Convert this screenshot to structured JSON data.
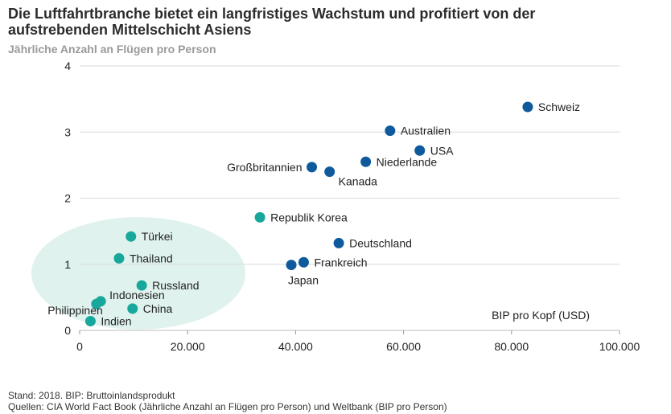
{
  "title_line1": "Die Luftfahrtbranche bietet ein langfristiges Wachstum und profitiert von der",
  "title_line2": "aufstrebenden Mittelschicht Asiens",
  "subtitle": "Jährliche Anzahl an Flügen pro Person",
  "footer_line1": "Stand: 2018. BIP: Bruttoinlandsprodukt",
  "footer_line2": "Quellen: CIA World Fact Book (Jährliche Anzahl an Flügen pro Person) und Weltbank (BIP pro Person)",
  "colors": {
    "developed": "#0f5a9c",
    "emerging": "#17a89b",
    "ellipse": "#dff2ee",
    "grid": "#d9d9d9"
  },
  "chart_data": {
    "type": "scatter",
    "title": "Die Luftfahrtbranche bietet ein langfristiges Wachstum und profitiert von der aufstrebenden Mittelschicht Asiens",
    "ylabel": "Jährliche Anzahl an Flügen pro Person",
    "xlabel": "BIP pro Kopf (USD)",
    "xlim": [
      0,
      100000
    ],
    "ylim": [
      0,
      4
    ],
    "x_ticks": [
      0,
      20000,
      40000,
      60000,
      80000,
      100000
    ],
    "x_tick_labels": [
      "0",
      "20.000",
      "40.000",
      "60.000",
      "80.000",
      "100.000"
    ],
    "y_ticks": [
      0,
      1,
      2,
      3,
      4
    ],
    "y_tick_labels": [
      "0",
      "1",
      "2",
      "3",
      "4"
    ],
    "grid": "horizontal",
    "series": [
      {
        "name": "developed",
        "points": [
          {
            "label": "Schweiz",
            "x": 83000,
            "y": 3.38,
            "label_pos": "right"
          },
          {
            "label": "Australien",
            "x": 57500,
            "y": 3.02,
            "label_pos": "right"
          },
          {
            "label": "USA",
            "x": 63000,
            "y": 2.72,
            "label_pos": "right"
          },
          {
            "label": "Niederlande",
            "x": 53000,
            "y": 2.55,
            "label_pos": "right"
          },
          {
            "label": "Großbritannien",
            "x": 43000,
            "y": 2.47,
            "label_pos": "left"
          },
          {
            "label": "Kanada",
            "x": 46300,
            "y": 2.4,
            "label_pos": "below-right"
          },
          {
            "label": "Deutschland",
            "x": 48000,
            "y": 1.32,
            "label_pos": "right"
          },
          {
            "label": "Frankreich",
            "x": 41500,
            "y": 1.03,
            "label_pos": "right"
          },
          {
            "label": "Japan",
            "x": 39200,
            "y": 0.99,
            "label_pos": "below"
          }
        ]
      },
      {
        "name": "emerging",
        "points": [
          {
            "label": "Republik Korea",
            "x": 33400,
            "y": 1.71,
            "label_pos": "right"
          },
          {
            "label": "Türkei",
            "x": 9500,
            "y": 1.42,
            "label_pos": "right"
          },
          {
            "label": "Thailand",
            "x": 7300,
            "y": 1.09,
            "label_pos": "right"
          },
          {
            "label": "Russland",
            "x": 11500,
            "y": 0.68,
            "label_pos": "right"
          },
          {
            "label": "Indonesien",
            "x": 3900,
            "y": 0.44,
            "label_pos": "above-right"
          },
          {
            "label": "Philippinen",
            "x": 3100,
            "y": 0.4,
            "label_pos": "below-left"
          },
          {
            "label": "China",
            "x": 9800,
            "y": 0.33,
            "label_pos": "right"
          },
          {
            "label": "Indien",
            "x": 2000,
            "y": 0.14,
            "label_pos": "right"
          }
        ]
      }
    ]
  }
}
